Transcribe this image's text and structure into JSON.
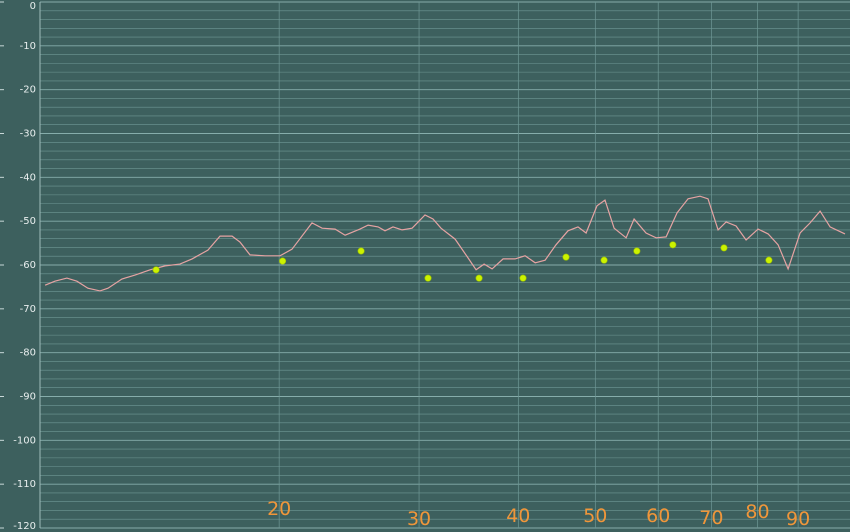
{
  "chart_data": {
    "type": "line",
    "series": [
      {
        "type": "line",
        "color": "#e6a3a3",
        "x": [
          10.15,
          10.44,
          10.81,
          11.13,
          11.49,
          11.9,
          12.18,
          12.68,
          13.17,
          13.76,
          14.37,
          15.0,
          15.54,
          16.27,
          16.85,
          17.45,
          17.86,
          18.38,
          19.2,
          20.05,
          20.76,
          22.0,
          22.65,
          23.52,
          24.21,
          25.28,
          25.88,
          26.64,
          27.18,
          27.82,
          28.56,
          29.4,
          30.52,
          31.24,
          31.97,
          33.3,
          34.58,
          35.39,
          36.22,
          37.07,
          38.27,
          39.63,
          40.79,
          42.0,
          43.23,
          44.62,
          46.2,
          47.56,
          48.68,
          50.25,
          51.43,
          52.8,
          54.66,
          55.95,
          57.92,
          59.63,
          61.38,
          63.37,
          65.42,
          67.73,
          69.32,
          71.37,
          73.04,
          75.19,
          77.4,
          80.14,
          82.5,
          84.92,
          87.42,
          90.51,
          93.17,
          95.91,
          98.73,
          103.1
        ],
        "values": [
          -64.6,
          -63.7,
          -63.0,
          -63.7,
          -65.3,
          -65.9,
          -65.3,
          -63.2,
          -62.3,
          -61.1,
          -60.2,
          -59.8,
          -58.6,
          -56.6,
          -53.4,
          -53.4,
          -54.8,
          -57.7,
          -57.9,
          -57.9,
          -56.4,
          -50.4,
          -51.6,
          -51.8,
          -53.2,
          -51.8,
          -50.9,
          -51.3,
          -52.2,
          -51.3,
          -52.0,
          -51.6,
          -48.6,
          -49.5,
          -51.6,
          -54.1,
          -58.4,
          -61.1,
          -59.8,
          -60.9,
          -58.6,
          -58.6,
          -57.9,
          -59.5,
          -58.9,
          -55.4,
          -52.2,
          -51.3,
          -52.7,
          -46.5,
          -45.2,
          -51.6,
          -53.8,
          -49.5,
          -52.7,
          -53.8,
          -53.6,
          -48.1,
          -44.9,
          -44.3,
          -44.9,
          -52.0,
          -50.2,
          -51.1,
          -54.3,
          -51.8,
          -52.9,
          -55.4,
          -60.9,
          -52.7,
          -50.4,
          -47.7,
          -51.3,
          -52.9
        ]
      },
      {
        "type": "scatter",
        "color": "#ccf200",
        "x": [
          14.0,
          20.2,
          25.36,
          30.79,
          35.7,
          40.55,
          45.93,
          51.29,
          56.4,
          62.6,
          72.6,
          82.7
        ],
        "values": [
          -61.1,
          -59.1,
          -56.8,
          -63.0,
          -63.0,
          -63.0,
          -58.2,
          -58.9,
          -56.8,
          -55.4,
          -56.1,
          -58.9
        ]
      }
    ],
    "log_x": true,
    "xlim": [
      10,
      104
    ],
    "xticks": [
      20,
      30,
      40,
      50,
      60,
      70,
      80,
      90
    ],
    "ylim": [
      -120,
      0
    ],
    "yticks": [
      0,
      -10,
      -20,
      -30,
      -40,
      -50,
      -60,
      -70,
      -80,
      -90,
      -100,
      -110,
      -120
    ],
    "grid": true
  }
}
